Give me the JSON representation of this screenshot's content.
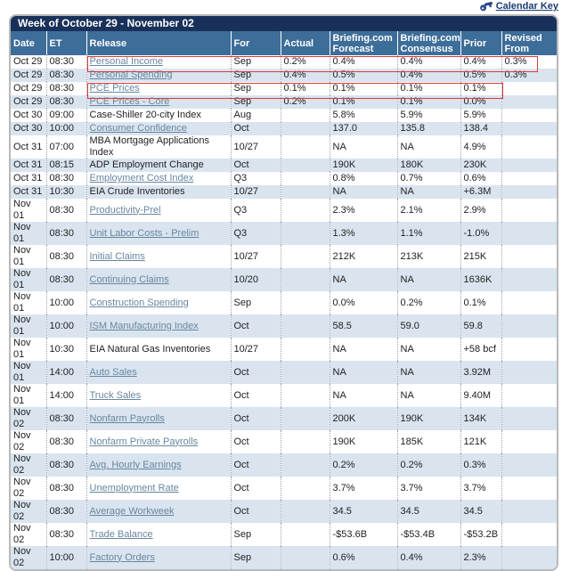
{
  "calendar_key": {
    "label": "Calendar Key",
    "icon": "key-icon"
  },
  "title": "Week of October 29 - November 02",
  "columns": [
    "Date",
    "ET",
    "Release",
    "For",
    "Actual",
    "Briefing.com Forecast",
    "Briefing.com Consensus",
    "Prior",
    "Revised From"
  ],
  "colors": {
    "title_bar": "#19315a",
    "column_header": "#3d6d99",
    "row_alt": "#d9e4ef",
    "link": "#67869f",
    "plain_text": "#222222",
    "highlight_box": "#dd3b3b",
    "calendar_key_link": "#1b3a75",
    "card_border": "#b9b9b9"
  },
  "rows": [
    {
      "date": "Oct 29",
      "et": "08:30",
      "release": "Personal Income",
      "is_link": true,
      "for": "Sep",
      "actual": "0.2%",
      "forecast": "0.4%",
      "consensus": "0.4%",
      "prior": "0.4%",
      "revised": "0.3%",
      "box": "to_revised"
    },
    {
      "date": "Oct 29",
      "et": "08:30",
      "release": "Personal Spending",
      "is_link": true,
      "for": "Sep",
      "actual": "0.4%",
      "forecast": "0.5%",
      "consensus": "0.4%",
      "prior": "0.5%",
      "revised": "0.3%",
      "box": "none"
    },
    {
      "date": "Oct 29",
      "et": "08:30",
      "release": "PCE Prices",
      "is_link": true,
      "for": "Sep",
      "actual": "0.1%",
      "forecast": "0.1%",
      "consensus": "0.1%",
      "prior": "0.1%",
      "revised": "",
      "box": "to_prior"
    },
    {
      "date": "Oct 29",
      "et": "08:30",
      "release": "PCE Prices - Core",
      "is_link": true,
      "for": "Sep",
      "actual": "0.2%",
      "forecast": "0.1%",
      "consensus": "0.1%",
      "prior": "0.0%",
      "revised": "",
      "box": "none"
    },
    {
      "date": "Oct 30",
      "et": "09:00",
      "release": "Case-Shiller 20-city Index",
      "is_link": false,
      "for": "Aug",
      "actual": "",
      "forecast": "5.8%",
      "consensus": "5.9%",
      "prior": "5.9%",
      "revised": "",
      "box": "none"
    },
    {
      "date": "Oct 30",
      "et": "10:00",
      "release": "Consumer Confidence",
      "is_link": true,
      "for": "Oct",
      "actual": "",
      "forecast": "137.0",
      "consensus": "135.8",
      "prior": "138.4",
      "revised": "",
      "box": "none"
    },
    {
      "date": "Oct 31",
      "et": "07:00",
      "release": "MBA Mortgage Applications Index",
      "is_link": false,
      "for": "10/27",
      "actual": "",
      "forecast": "NA",
      "consensus": "NA",
      "prior": "4.9%",
      "revised": "",
      "box": "none"
    },
    {
      "date": "Oct 31",
      "et": "08:15",
      "release": "ADP Employment Change",
      "is_link": false,
      "for": "Oct",
      "actual": "",
      "forecast": "190K",
      "consensus": "180K",
      "prior": "230K",
      "revised": "",
      "box": "none"
    },
    {
      "date": "Oct 31",
      "et": "08:30",
      "release": "Employment Cost Index",
      "is_link": true,
      "for": "Q3",
      "actual": "",
      "forecast": "0.8%",
      "consensus": "0.7%",
      "prior": "0.6%",
      "revised": "",
      "box": "none"
    },
    {
      "date": "Oct 31",
      "et": "10:30",
      "release": "EIA Crude Inventories",
      "is_link": false,
      "for": "10/27",
      "actual": "",
      "forecast": "NA",
      "consensus": "NA",
      "prior": "+6.3M",
      "revised": "",
      "box": "none"
    },
    {
      "date": "Nov 01",
      "et": "08:30",
      "release": "Productivity-Prel",
      "is_link": true,
      "for": "Q3",
      "actual": "",
      "forecast": "2.3%",
      "consensus": "2.1%",
      "prior": "2.9%",
      "revised": "",
      "box": "none"
    },
    {
      "date": "Nov 01",
      "et": "08:30",
      "release": "Unit Labor Costs - Prelim",
      "is_link": true,
      "for": "Q3",
      "actual": "",
      "forecast": "1.3%",
      "consensus": "1.1%",
      "prior": "-1.0%",
      "revised": "",
      "box": "none"
    },
    {
      "date": "Nov 01",
      "et": "08:30",
      "release": "Initial Claims",
      "is_link": true,
      "for": "10/27",
      "actual": "",
      "forecast": "212K",
      "consensus": "213K",
      "prior": "215K",
      "revised": "",
      "box": "none"
    },
    {
      "date": "Nov 01",
      "et": "08:30",
      "release": "Continuing Claims",
      "is_link": true,
      "for": "10/20",
      "actual": "",
      "forecast": "NA",
      "consensus": "NA",
      "prior": "1636K",
      "revised": "",
      "box": "none"
    },
    {
      "date": "Nov 01",
      "et": "10:00",
      "release": "Construction Spending",
      "is_link": true,
      "for": "Sep",
      "actual": "",
      "forecast": "0.0%",
      "consensus": "0.2%",
      "prior": "0.1%",
      "revised": "",
      "box": "none"
    },
    {
      "date": "Nov 01",
      "et": "10:00",
      "release": "ISM Manufacturing Index",
      "is_link": true,
      "for": "Oct",
      "actual": "",
      "forecast": "58.5",
      "consensus": "59.0",
      "prior": "59.8",
      "revised": "",
      "box": "none"
    },
    {
      "date": "Nov 01",
      "et": "10:30",
      "release": "EIA Natural Gas Inventories",
      "is_link": false,
      "for": "10/27",
      "actual": "",
      "forecast": "NA",
      "consensus": "NA",
      "prior": "+58 bcf",
      "revised": "",
      "box": "none"
    },
    {
      "date": "Nov 01",
      "et": "14:00",
      "release": "Auto Sales",
      "is_link": true,
      "for": "Oct",
      "actual": "",
      "forecast": "NA",
      "consensus": "NA",
      "prior": "3.92M",
      "revised": "",
      "box": "none"
    },
    {
      "date": "Nov 01",
      "et": "14:00",
      "release": "Truck Sales",
      "is_link": true,
      "for": "Oct",
      "actual": "",
      "forecast": "NA",
      "consensus": "NA",
      "prior": "9.40M",
      "revised": "",
      "box": "none"
    },
    {
      "date": "Nov 02",
      "et": "08:30",
      "release": "Nonfarm Payrolls",
      "is_link": true,
      "for": "Oct",
      "actual": "",
      "forecast": "200K",
      "consensus": "190K",
      "prior": "134K",
      "revised": "",
      "box": "none"
    },
    {
      "date": "Nov 02",
      "et": "08:30",
      "release": "Nonfarm Private Payrolls",
      "is_link": true,
      "for": "Oct",
      "actual": "",
      "forecast": "190K",
      "consensus": "185K",
      "prior": "121K",
      "revised": "",
      "box": "none"
    },
    {
      "date": "Nov 02",
      "et": "08:30",
      "release": "Avg. Hourly Earnings",
      "is_link": true,
      "for": "Oct",
      "actual": "",
      "forecast": "0.2%",
      "consensus": "0.2%",
      "prior": "0.3%",
      "revised": "",
      "box": "none"
    },
    {
      "date": "Nov 02",
      "et": "08:30",
      "release": "Unemployment Rate",
      "is_link": true,
      "for": "Oct",
      "actual": "",
      "forecast": "3.7%",
      "consensus": "3.7%",
      "prior": "3.7%",
      "revised": "",
      "box": "none"
    },
    {
      "date": "Nov 02",
      "et": "08:30",
      "release": "Average Workweek",
      "is_link": true,
      "for": "Oct",
      "actual": "",
      "forecast": "34.5",
      "consensus": "34.5",
      "prior": "34.5",
      "revised": "",
      "box": "none"
    },
    {
      "date": "Nov 02",
      "et": "08:30",
      "release": "Trade Balance",
      "is_link": true,
      "for": "Sep",
      "actual": "",
      "forecast": "-$53.6B",
      "consensus": "-$53.4B",
      "prior": "-$53.2B",
      "revised": "",
      "box": "none"
    },
    {
      "date": "Nov 02",
      "et": "10:00",
      "release": "Factory Orders",
      "is_link": true,
      "for": "Sep",
      "actual": "",
      "forecast": "0.6%",
      "consensus": "0.4%",
      "prior": "2.3%",
      "revised": "",
      "box": "none"
    }
  ]
}
